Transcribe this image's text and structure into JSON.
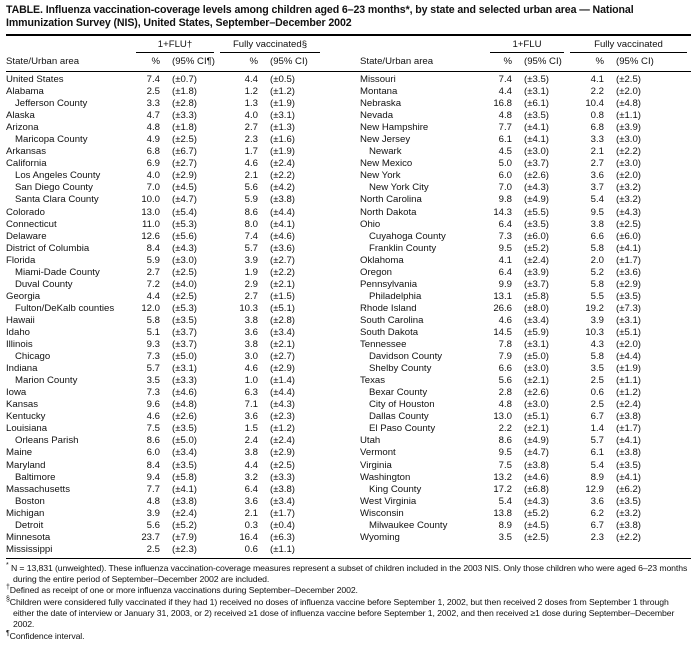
{
  "title": "TABLE. Influenza vaccination-coverage levels among children aged 6–23 months*, by state and selected urban area — National Immunization Survey (NIS), United States, September–December 2002",
  "header": {
    "state_col": "State/Urban area",
    "pct": "%",
    "ci_footnote": "(95% CI¶)",
    "ci": "(95% CI)",
    "left": {
      "flu": "1+FLU†",
      "fully": "Fully vaccinated§"
    },
    "right": {
      "flu": "1+FLU",
      "fully": "Fully vaccinated"
    }
  },
  "table": {
    "left_rows": [
      {
        "name": "United States",
        "indent": false,
        "flu_pct": "7.4",
        "flu_ci": "(±0.7)",
        "fv_pct": "4.4",
        "fv_ci": "(±0.5)"
      },
      {
        "name": "Alabama",
        "indent": false,
        "flu_pct": "2.5",
        "flu_ci": "(±1.8)",
        "fv_pct": "1.2",
        "fv_ci": "(±1.2)"
      },
      {
        "name": "Jefferson County",
        "indent": true,
        "flu_pct": "3.3",
        "flu_ci": "(±2.8)",
        "fv_pct": "1.3",
        "fv_ci": "(±1.9)"
      },
      {
        "name": "Alaska",
        "indent": false,
        "flu_pct": "4.7",
        "flu_ci": "(±3.3)",
        "fv_pct": "4.0",
        "fv_ci": "(±3.1)"
      },
      {
        "name": "Arizona",
        "indent": false,
        "flu_pct": "4.8",
        "flu_ci": "(±1.8)",
        "fv_pct": "2.7",
        "fv_ci": "(±1.3)"
      },
      {
        "name": "Maricopa County",
        "indent": true,
        "flu_pct": "4.9",
        "flu_ci": "(±2.5)",
        "fv_pct": "2.3",
        "fv_ci": "(±1.6)"
      },
      {
        "name": "Arkansas",
        "indent": false,
        "flu_pct": "6.8",
        "flu_ci": "(±6.7)",
        "fv_pct": "1.7",
        "fv_ci": "(±1.9)"
      },
      {
        "name": "California",
        "indent": false,
        "flu_pct": "6.9",
        "flu_ci": "(±2.7)",
        "fv_pct": "4.6",
        "fv_ci": "(±2.4)"
      },
      {
        "name": "Los Angeles County",
        "indent": true,
        "flu_pct": "4.0",
        "flu_ci": "(±2.9)",
        "fv_pct": "2.1",
        "fv_ci": "(±2.2)"
      },
      {
        "name": "San Diego County",
        "indent": true,
        "flu_pct": "7.0",
        "flu_ci": "(±4.5)",
        "fv_pct": "5.6",
        "fv_ci": "(±4.2)"
      },
      {
        "name": "Santa Clara County",
        "indent": true,
        "flu_pct": "10.0",
        "flu_ci": "(±4.7)",
        "fv_pct": "5.9",
        "fv_ci": "(±3.8)"
      },
      {
        "name": "Colorado",
        "indent": false,
        "flu_pct": "13.0",
        "flu_ci": "(±5.4)",
        "fv_pct": "8.6",
        "fv_ci": "(±4.4)"
      },
      {
        "name": "Connecticut",
        "indent": false,
        "flu_pct": "11.0",
        "flu_ci": "(±5.3)",
        "fv_pct": "8.0",
        "fv_ci": "(±4.1)"
      },
      {
        "name": "Delaware",
        "indent": false,
        "flu_pct": "12.6",
        "flu_ci": "(±5.6)",
        "fv_pct": "7.4",
        "fv_ci": "(±4.6)"
      },
      {
        "name": "District of Columbia",
        "indent": false,
        "flu_pct": "8.4",
        "flu_ci": "(±4.3)",
        "fv_pct": "5.7",
        "fv_ci": "(±3.6)"
      },
      {
        "name": "Florida",
        "indent": false,
        "flu_pct": "5.9",
        "flu_ci": "(±3.0)",
        "fv_pct": "3.9",
        "fv_ci": "(±2.7)"
      },
      {
        "name": "Miami-Dade County",
        "indent": true,
        "flu_pct": "2.7",
        "flu_ci": "(±2.5)",
        "fv_pct": "1.9",
        "fv_ci": "(±2.2)"
      },
      {
        "name": "Duval County",
        "indent": true,
        "flu_pct": "7.2",
        "flu_ci": "(±4.0)",
        "fv_pct": "2.9",
        "fv_ci": "(±2.1)"
      },
      {
        "name": "Georgia",
        "indent": false,
        "flu_pct": "4.4",
        "flu_ci": "(±2.5)",
        "fv_pct": "2.7",
        "fv_ci": "(±1.5)"
      },
      {
        "name": "Fulton/DeKalb counties",
        "indent": true,
        "flu_pct": "12.0",
        "flu_ci": "(±5.3)",
        "fv_pct": "10.3",
        "fv_ci": "(±5.1)"
      },
      {
        "name": "Hawaii",
        "indent": false,
        "flu_pct": "5.8",
        "flu_ci": "(±3.5)",
        "fv_pct": "3.8",
        "fv_ci": "(±2.8)"
      },
      {
        "name": "Idaho",
        "indent": false,
        "flu_pct": "5.1",
        "flu_ci": "(±3.7)",
        "fv_pct": "3.6",
        "fv_ci": "(±3.4)"
      },
      {
        "name": "Illinois",
        "indent": false,
        "flu_pct": "9.3",
        "flu_ci": "(±3.7)",
        "fv_pct": "3.8",
        "fv_ci": "(±2.1)"
      },
      {
        "name": "Chicago",
        "indent": true,
        "flu_pct": "7.3",
        "flu_ci": "(±5.0)",
        "fv_pct": "3.0",
        "fv_ci": "(±2.7)"
      },
      {
        "name": "Indiana",
        "indent": false,
        "flu_pct": "5.7",
        "flu_ci": "(±3.1)",
        "fv_pct": "4.6",
        "fv_ci": "(±2.9)"
      },
      {
        "name": "Marion County",
        "indent": true,
        "flu_pct": "3.5",
        "flu_ci": "(±3.3)",
        "fv_pct": "1.0",
        "fv_ci": "(±1.4)"
      },
      {
        "name": "Iowa",
        "indent": false,
        "flu_pct": "7.3",
        "flu_ci": "(±4.6)",
        "fv_pct": "6.3",
        "fv_ci": "(±4.4)"
      },
      {
        "name": "Kansas",
        "indent": false,
        "flu_pct": "9.6",
        "flu_ci": "(±4.8)",
        "fv_pct": "7.1",
        "fv_ci": "(±4.3)"
      },
      {
        "name": "Kentucky",
        "indent": false,
        "flu_pct": "4.6",
        "flu_ci": "(±2.6)",
        "fv_pct": "3.6",
        "fv_ci": "(±2.3)"
      },
      {
        "name": "Louisiana",
        "indent": false,
        "flu_pct": "7.5",
        "flu_ci": "(±3.5)",
        "fv_pct": "1.5",
        "fv_ci": "(±1.2)"
      },
      {
        "name": "Orleans Parish",
        "indent": true,
        "flu_pct": "8.6",
        "flu_ci": "(±5.0)",
        "fv_pct": "2.4",
        "fv_ci": "(±2.4)"
      },
      {
        "name": "Maine",
        "indent": false,
        "flu_pct": "6.0",
        "flu_ci": "(±3.4)",
        "fv_pct": "3.8",
        "fv_ci": "(±2.9)"
      },
      {
        "name": "Maryland",
        "indent": false,
        "flu_pct": "8.4",
        "flu_ci": "(±3.5)",
        "fv_pct": "4.4",
        "fv_ci": "(±2.5)"
      },
      {
        "name": "Baltimore",
        "indent": true,
        "flu_pct": "9.4",
        "flu_ci": "(±5.8)",
        "fv_pct": "3.2",
        "fv_ci": "(±3.3)"
      },
      {
        "name": "Massachusetts",
        "indent": false,
        "flu_pct": "7.7",
        "flu_ci": "(±4.1)",
        "fv_pct": "6.4",
        "fv_ci": "(±3.8)"
      },
      {
        "name": "Boston",
        "indent": true,
        "flu_pct": "4.8",
        "flu_ci": "(±3.8)",
        "fv_pct": "3.6",
        "fv_ci": "(±3.4)"
      },
      {
        "name": "Michigan",
        "indent": false,
        "flu_pct": "3.9",
        "flu_ci": "(±2.4)",
        "fv_pct": "2.1",
        "fv_ci": "(±1.7)"
      },
      {
        "name": "Detroit",
        "indent": true,
        "flu_pct": "5.6",
        "flu_ci": "(±5.2)",
        "fv_pct": "0.3",
        "fv_ci": "(±0.4)"
      },
      {
        "name": "Minnesota",
        "indent": false,
        "flu_pct": "23.7",
        "flu_ci": "(±7.9)",
        "fv_pct": "16.4",
        "fv_ci": "(±6.3)"
      },
      {
        "name": "Mississippi",
        "indent": false,
        "flu_pct": "2.5",
        "flu_ci": "(±2.3)",
        "fv_pct": "0.6",
        "fv_ci": "(±1.1)"
      }
    ],
    "right_rows": [
      {
        "name": "Missouri",
        "indent": false,
        "flu_pct": "7.4",
        "flu_ci": "(±3.5)",
        "fv_pct": "4.1",
        "fv_ci": "(±2.5)"
      },
      {
        "name": "Montana",
        "indent": false,
        "flu_pct": "4.4",
        "flu_ci": "(±3.1)",
        "fv_pct": "2.2",
        "fv_ci": "(±2.0)"
      },
      {
        "name": "Nebraska",
        "indent": false,
        "flu_pct": "16.8",
        "flu_ci": "(±6.1)",
        "fv_pct": "10.4",
        "fv_ci": "(±4.8)"
      },
      {
        "name": "Nevada",
        "indent": false,
        "flu_pct": "4.8",
        "flu_ci": "(±3.5)",
        "fv_pct": "0.8",
        "fv_ci": "(±1.1)"
      },
      {
        "name": "New Hampshire",
        "indent": false,
        "flu_pct": "7.7",
        "flu_ci": "(±4.1)",
        "fv_pct": "6.8",
        "fv_ci": "(±3.9)"
      },
      {
        "name": "New Jersey",
        "indent": false,
        "flu_pct": "6.1",
        "flu_ci": "(±4.1)",
        "fv_pct": "3.3",
        "fv_ci": "(±3.0)"
      },
      {
        "name": "Newark",
        "indent": true,
        "flu_pct": "4.5",
        "flu_ci": "(±3.0)",
        "fv_pct": "2.1",
        "fv_ci": "(±2.2)"
      },
      {
        "name": "New Mexico",
        "indent": false,
        "flu_pct": "5.0",
        "flu_ci": "(±3.7)",
        "fv_pct": "2.7",
        "fv_ci": "(±3.0)"
      },
      {
        "name": "New York",
        "indent": false,
        "flu_pct": "6.0",
        "flu_ci": "(±2.6)",
        "fv_pct": "3.6",
        "fv_ci": "(±2.0)"
      },
      {
        "name": "New York City",
        "indent": true,
        "flu_pct": "7.0",
        "flu_ci": "(±4.3)",
        "fv_pct": "3.7",
        "fv_ci": "(±3.2)"
      },
      {
        "name": "North Carolina",
        "indent": false,
        "flu_pct": "9.8",
        "flu_ci": "(±4.9)",
        "fv_pct": "5.4",
        "fv_ci": "(±3.2)"
      },
      {
        "name": "North Dakota",
        "indent": false,
        "flu_pct": "14.3",
        "flu_ci": "(±5.5)",
        "fv_pct": "9.5",
        "fv_ci": "(±4.3)"
      },
      {
        "name": "Ohio",
        "indent": false,
        "flu_pct": "6.4",
        "flu_ci": "(±3.5)",
        "fv_pct": "3.8",
        "fv_ci": "(±2.5)"
      },
      {
        "name": "Cuyahoga County",
        "indent": true,
        "flu_pct": "7.3",
        "flu_ci": "(±6.0)",
        "fv_pct": "6.6",
        "fv_ci": "(±6.0)"
      },
      {
        "name": "Franklin County",
        "indent": true,
        "flu_pct": "9.5",
        "flu_ci": "(±5.2)",
        "fv_pct": "5.8",
        "fv_ci": "(±4.1)"
      },
      {
        "name": "Oklahoma",
        "indent": false,
        "flu_pct": "4.1",
        "flu_ci": "(±2.4)",
        "fv_pct": "2.0",
        "fv_ci": "(±1.7)"
      },
      {
        "name": "Oregon",
        "indent": false,
        "flu_pct": "6.4",
        "flu_ci": "(±3.9)",
        "fv_pct": "5.2",
        "fv_ci": "(±3.6)"
      },
      {
        "name": "Pennsylvania",
        "indent": false,
        "flu_pct": "9.9",
        "flu_ci": "(±3.7)",
        "fv_pct": "5.8",
        "fv_ci": "(±2.9)"
      },
      {
        "name": "Philadelphia",
        "indent": true,
        "flu_pct": "13.1",
        "flu_ci": "(±5.8)",
        "fv_pct": "5.5",
        "fv_ci": "(±3.5)"
      },
      {
        "name": "Rhode Island",
        "indent": false,
        "flu_pct": "26.6",
        "flu_ci": "(±8.0)",
        "fv_pct": "19.2",
        "fv_ci": "(±7.3)"
      },
      {
        "name": "South Carolina",
        "indent": false,
        "flu_pct": "4.6",
        "flu_ci": "(±3.4)",
        "fv_pct": "3.9",
        "fv_ci": "(±3.1)"
      },
      {
        "name": "South Dakota",
        "indent": false,
        "flu_pct": "14.5",
        "flu_ci": "(±5.9)",
        "fv_pct": "10.3",
        "fv_ci": "(±5.1)"
      },
      {
        "name": "Tennessee",
        "indent": false,
        "flu_pct": "7.8",
        "flu_ci": "(±3.1)",
        "fv_pct": "4.3",
        "fv_ci": "(±2.0)"
      },
      {
        "name": "Davidson County",
        "indent": true,
        "flu_pct": "7.9",
        "flu_ci": "(±5.0)",
        "fv_pct": "5.8",
        "fv_ci": "(±4.4)"
      },
      {
        "name": "Shelby County",
        "indent": true,
        "flu_pct": "6.6",
        "flu_ci": "(±3.0)",
        "fv_pct": "3.5",
        "fv_ci": "(±1.9)"
      },
      {
        "name": "Texas",
        "indent": false,
        "flu_pct": "5.6",
        "flu_ci": "(±2.1)",
        "fv_pct": "2.5",
        "fv_ci": "(±1.1)"
      },
      {
        "name": "Bexar County",
        "indent": true,
        "flu_pct": "2.8",
        "flu_ci": "(±2.6)",
        "fv_pct": "0.6",
        "fv_ci": "(±1.2)"
      },
      {
        "name": "City of Houston",
        "indent": true,
        "flu_pct": "4.8",
        "flu_ci": "(±3.0)",
        "fv_pct": "2.5",
        "fv_ci": "(±2.4)"
      },
      {
        "name": "Dallas County",
        "indent": true,
        "flu_pct": "13.0",
        "flu_ci": "(±5.1)",
        "fv_pct": "6.7",
        "fv_ci": "(±3.8)"
      },
      {
        "name": "El Paso County",
        "indent": true,
        "flu_pct": "2.2",
        "flu_ci": "(±2.1)",
        "fv_pct": "1.4",
        "fv_ci": "(±1.7)"
      },
      {
        "name": "Utah",
        "indent": false,
        "flu_pct": "8.6",
        "flu_ci": "(±4.9)",
        "fv_pct": "5.7",
        "fv_ci": "(±4.1)"
      },
      {
        "name": "Vermont",
        "indent": false,
        "flu_pct": "9.5",
        "flu_ci": "(±4.7)",
        "fv_pct": "6.1",
        "fv_ci": "(±3.8)"
      },
      {
        "name": "Virginia",
        "indent": false,
        "flu_pct": "7.5",
        "flu_ci": "(±3.8)",
        "fv_pct": "5.4",
        "fv_ci": "(±3.5)"
      },
      {
        "name": "Washington",
        "indent": false,
        "flu_pct": "13.2",
        "flu_ci": "(±4.6)",
        "fv_pct": "8.9",
        "fv_ci": "(±4.1)"
      },
      {
        "name": "King County",
        "indent": true,
        "flu_pct": "17.2",
        "flu_ci": "(±6.8)",
        "fv_pct": "12.9",
        "fv_ci": "(±6.2)"
      },
      {
        "name": "West Virginia",
        "indent": false,
        "flu_pct": "5.4",
        "flu_ci": "(±4.3)",
        "fv_pct": "3.6",
        "fv_ci": "(±3.5)"
      },
      {
        "name": "Wisconsin",
        "indent": false,
        "flu_pct": "13.8",
        "flu_ci": "(±5.2)",
        "fv_pct": "6.2",
        "fv_ci": "(±3.2)"
      },
      {
        "name": "Milwaukee County",
        "indent": true,
        "flu_pct": "8.9",
        "flu_ci": "(±4.5)",
        "fv_pct": "6.7",
        "fv_ci": "(±3.8)"
      },
      {
        "name": "Wyoming",
        "indent": false,
        "flu_pct": "3.5",
        "flu_ci": "(±2.5)",
        "fv_pct": "2.3",
        "fv_ci": "(±2.2)"
      }
    ]
  },
  "footnotes": [
    {
      "marker": "*",
      "text": " N = 13,831 (unweighted). These influenza vaccination-coverage measures represent a subset of children included in the 2003 NIS. Only those children who were aged 6–23 months during the entire period of September–December 2002 are included."
    },
    {
      "marker": "†",
      "text": "Defined as receipt of one or more influenza vaccinations during September–December 2002."
    },
    {
      "marker": "§",
      "text": "Children were considered fully vaccinated if they had 1) received no doses of influenza vaccine before September 1, 2002, but then received 2 doses from September 1 through either the date of interview or January 31, 2003, or 2) received ≥1 dose of influenza vaccine before September 1, 2002, and then received ≥1 dose during September–December 2002."
    },
    {
      "marker": "¶",
      "text": "Confidence interval."
    }
  ]
}
